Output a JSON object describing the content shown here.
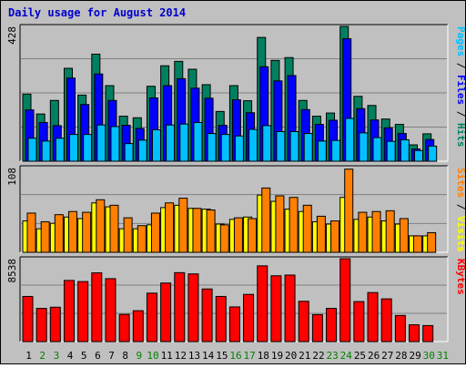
{
  "chart_data": {
    "type": "bar",
    "title": "Daily usage for August 2014",
    "categories": [
      "1",
      "2",
      "3",
      "4",
      "5",
      "6",
      "7",
      "8",
      "9",
      "10",
      "11",
      "12",
      "13",
      "14",
      "15",
      "16",
      "17",
      "18",
      "19",
      "20",
      "21",
      "22",
      "23",
      "24",
      "25",
      "26",
      "27",
      "28",
      "29",
      "30",
      "31"
    ],
    "weekend_days": [
      2,
      3,
      9,
      10,
      16,
      17,
      23,
      24,
      30,
      31
    ],
    "colors": {
      "background": "#c0c0c0",
      "plot": "#c0c0c0",
      "grid": "#808080",
      "title": "#0000cc",
      "hits": "#008060",
      "files": "#0000ff",
      "pages": "#00c0ff",
      "visits": "#ffff00",
      "sites": "#ff8000",
      "kbytes": "#ff0000",
      "weekday_label": "#000000",
      "weekend_label": "#008000"
    },
    "panels": [
      {
        "id": "top",
        "max_label": "428",
        "ymax": 428,
        "right_label": {
          "parts": [
            {
              "text": "Pages",
              "color": "#00c0ff"
            },
            {
              "text": " / ",
              "color": "#000000"
            },
            {
              "text": "Files",
              "color": "#0000ff"
            },
            {
              "text": " / ",
              "color": "#000000"
            },
            {
              "text": "Hits",
              "color": "#008060"
            }
          ]
        },
        "series": [
          {
            "name": "Hits",
            "color": "#008060",
            "values": [
              213,
              150,
              193,
              295,
              210,
              340,
              240,
              143,
              138,
              238,
              303,
              317,
              292,
              243,
              158,
              240,
              192,
              393,
              320,
              329,
              193,
              143,
              153,
              428,
              206,
              177,
              134,
              117,
              52,
              87,
              0
            ]
          },
          {
            "name": "Files",
            "color": "#0000ff",
            "values": [
              163,
              123,
              113,
              264,
              180,
              277,
              193,
              114,
              104,
              201,
              240,
              262,
              232,
              200,
              114,
              195,
              154,
              300,
              255,
              272,
              164,
              117,
              130,
              389,
              167,
              131,
              106,
              88,
              39,
              69,
              0
            ]
          },
          {
            "name": "Pages",
            "color": "#00c0ff",
            "values": [
              73,
              64,
              73,
              85,
              85,
              115,
              110,
              56,
              67,
              100,
              115,
              118,
              123,
              88,
              85,
              80,
              101,
              113,
              94,
              94,
              88,
              64,
              66,
              136,
              90,
              75,
              63,
              68,
              34,
              48,
              0
            ]
          }
        ]
      },
      {
        "id": "mid",
        "max_label": "108",
        "ymax": 108,
        "right_label": {
          "parts": [
            {
              "text": "Sites",
              "color": "#ff8000"
            },
            {
              "text": " / ",
              "color": "#000000"
            },
            {
              "text": "Visits",
              "color": "#ffff00"
            }
          ]
        },
        "series": [
          {
            "name": "Visits",
            "color": "#ffff00",
            "values": [
              40,
              30,
              37,
              45,
              43,
              63,
              58,
              30,
              30,
              35,
              57,
              60,
              56,
              55,
              36,
              42,
              45,
              73,
              65,
              55,
              52,
              39,
              36,
              70,
              42,
              45,
              40,
              36,
              21,
              21,
              0
            ]
          },
          {
            "name": "Sites",
            "color": "#ff8000",
            "values": [
              50,
              39,
              48,
              52,
              51,
              67,
              60,
              44,
              34,
              50,
              63,
              69,
              56,
              54,
              35,
              44,
              43,
              82,
              72,
              70,
              60,
              46,
              40,
              106,
              51,
              52,
              53,
              43,
              21,
              25,
              0
            ]
          }
        ]
      },
      {
        "id": "bot",
        "max_label": "8538",
        "ymax": 8538,
        "right_label": {
          "parts": [
            {
              "text": "KBytes",
              "color": "#ff0000"
            }
          ]
        },
        "series": [
          {
            "name": "KBytes",
            "color": "#ff0000",
            "values": [
              4650,
              3420,
              3540,
              6300,
              6180,
              7080,
              6480,
              2800,
              3180,
              4990,
              6030,
              7100,
              6970,
              5420,
              4650,
              3570,
              4860,
              7800,
              6780,
              6850,
              4150,
              2780,
              3420,
              8538,
              4120,
              5050,
              4400,
              2690,
              1730,
              1650,
              0
            ]
          }
        ]
      }
    ]
  }
}
